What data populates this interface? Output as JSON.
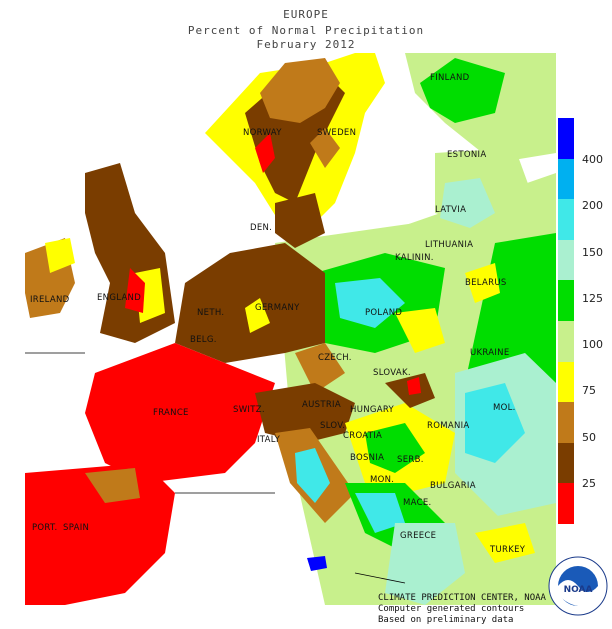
{
  "header": {
    "line1": "EUROPE",
    "line2": "Percent of Normal Precipitation",
    "line3": "February 2012"
  },
  "map": {
    "countries": [
      {
        "name": "FINLAND",
        "key": "finland"
      },
      {
        "name": "NORWAY",
        "key": "norway"
      },
      {
        "name": "SWEDEN",
        "key": "sweden"
      },
      {
        "name": "ESTONIA",
        "key": "estonia"
      },
      {
        "name": "LATVIA",
        "key": "latvia"
      },
      {
        "name": "LITHUANIA",
        "key": "lithuania"
      },
      {
        "name": "DEN.",
        "key": "denmark"
      },
      {
        "name": "KALININ.",
        "key": "kaliningrad"
      },
      {
        "name": "BELARUS",
        "key": "belarus"
      },
      {
        "name": "IRELAND",
        "key": "ireland"
      },
      {
        "name": "ENGLAND",
        "key": "england"
      },
      {
        "name": "NETH.",
        "key": "netherlands"
      },
      {
        "name": "BELG.",
        "key": "belgium"
      },
      {
        "name": "GERMANY",
        "key": "germany"
      },
      {
        "name": "POLAND",
        "key": "poland"
      },
      {
        "name": "CZECH.",
        "key": "czech"
      },
      {
        "name": "SLOVAK.",
        "key": "slovakia"
      },
      {
        "name": "UKRAINE",
        "key": "ukraine"
      },
      {
        "name": "FRANCE",
        "key": "france"
      },
      {
        "name": "SWITZ.",
        "key": "switzerland"
      },
      {
        "name": "AUSTRIA",
        "key": "austria"
      },
      {
        "name": "HUNGARY",
        "key": "hungary"
      },
      {
        "name": "MOL.",
        "key": "moldova"
      },
      {
        "name": "ROMANIA",
        "key": "romania"
      },
      {
        "name": "SLOV.",
        "key": "slovenia"
      },
      {
        "name": "CROATIA",
        "key": "croatia"
      },
      {
        "name": "ITALY",
        "key": "italy"
      },
      {
        "name": "BOSNIA",
        "key": "bosnia"
      },
      {
        "name": "SERB.",
        "key": "serbia"
      },
      {
        "name": "BULGARIA",
        "key": "bulgaria"
      },
      {
        "name": "MON.",
        "key": "montenegro"
      },
      {
        "name": "MACE.",
        "key": "macedonia"
      },
      {
        "name": "PORT.",
        "key": "portugal"
      },
      {
        "name": "SPAIN",
        "key": "spain"
      },
      {
        "name": "GREECE",
        "key": "greece"
      },
      {
        "name": "TURKEY",
        "key": "turkey"
      }
    ]
  },
  "legend": {
    "bins": [
      {
        "color": "#ff0000",
        "label": "25"
      },
      {
        "color": "#7a3d00",
        "label": "50"
      },
      {
        "color": "#c07a1a",
        "label": "75"
      },
      {
        "color": "#ffff00",
        "label": "100"
      },
      {
        "color": "#c8f08c",
        "label": "125"
      },
      {
        "color": "#00dd00",
        "label": "150"
      },
      {
        "color": "#aaf0d0",
        "label": "200"
      },
      {
        "color": "#40e8e8",
        "label": "400"
      },
      {
        "color": "#00b0f0",
        "label": ""
      },
      {
        "color": "#0000ff",
        "label": ""
      }
    ]
  },
  "credits": {
    "line1": "CLIMATE PREDICTION CENTER, NOAA",
    "line2": "Computer generated contours",
    "line3": "Based on preliminary data"
  },
  "logo": {
    "text": "NOAA",
    "ring_text": "NATIONAL OCEANIC AND ATMOSPHERIC ADMINISTRATION • U.S. DEPARTMENT OF COMMERCE"
  }
}
